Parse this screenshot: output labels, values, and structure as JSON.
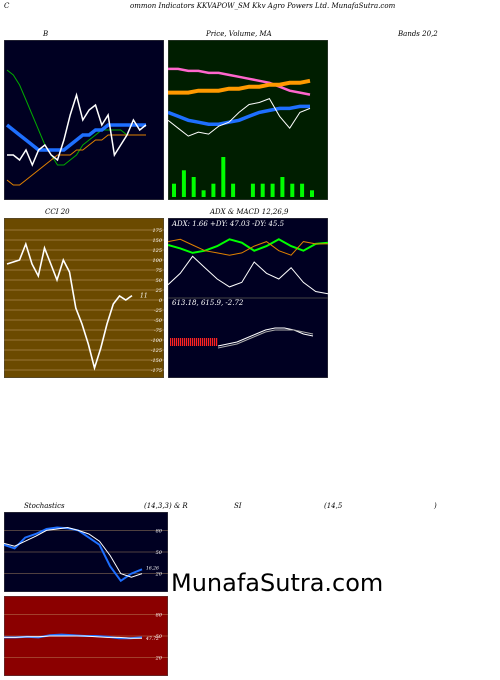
{
  "header": {
    "c_letter": "C",
    "title": "ommon  Indicators KKVAPOW_SM Kkv  Agro  Powers Ltd. MunafaSutra.com"
  },
  "labels": {
    "bollinger": "B",
    "price_volume": "Price,  Volume,  MA",
    "bands": "Bands 20,2",
    "cci": "CCI 20",
    "adx_macd": "ADX  & MACD 12,26,9",
    "adx_values": "ADX: 1.66   +DY: 47.03 -DY: 45.5",
    "macd_values": "613.18,  615.9,   -2.72",
    "stochastics": "Stochastics",
    "stoch_params": "(14,3,3) & R",
    "si": "SI",
    "rsi_params": "(14,5",
    "paren_close": ")",
    "cci_value": "11",
    "stoch_value": "16,26",
    "rsi_value": "47.72",
    "watermark": "MunafaSutra.com"
  },
  "chart_data": [
    {
      "type": "line",
      "panel": "bollinger-bands",
      "series": [
        {
          "name": "upper",
          "color": "#00aa00",
          "values": [
            205,
            204,
            202,
            199,
            196,
            193,
            190,
            188,
            186,
            186,
            187,
            188,
            190,
            191,
            192,
            193,
            193,
            193,
            193,
            192,
            192,
            192,
            192
          ]
        },
        {
          "name": "middle",
          "color": "#1e6fff",
          "values": [
            194,
            193,
            192,
            191,
            190,
            189,
            189,
            189,
            189,
            189,
            190,
            191,
            192,
            192,
            193,
            193,
            194,
            194,
            194,
            194,
            194,
            194,
            194
          ]
        },
        {
          "name": "lower",
          "color": "#e08000",
          "values": [
            183,
            182,
            182,
            183,
            184,
            185,
            186,
            187,
            188,
            188,
            188,
            189,
            189,
            190,
            191,
            191,
            192,
            192,
            192,
            192,
            192,
            192,
            192
          ]
        },
        {
          "name": "price",
          "color": "#ffffff",
          "values": [
            188,
            188,
            187,
            189,
            186,
            189,
            190,
            188,
            187,
            191,
            196,
            200,
            195,
            197,
            198,
            194,
            196,
            188,
            190,
            192,
            195,
            193,
            194
          ]
        }
      ]
    },
    {
      "type": "line",
      "panel": "price-volume-ma",
      "series": [
        {
          "name": "ma-pink",
          "color": "#ff66cc",
          "values": [
            210,
            210,
            209,
            209,
            208,
            208,
            207,
            206,
            205,
            204,
            203,
            201,
            199,
            198,
            197
          ]
        },
        {
          "name": "ma-orange",
          "color": "#ff9900",
          "values": [
            198,
            198,
            198,
            199,
            199,
            199,
            200,
            200,
            201,
            201,
            202,
            202,
            203,
            203,
            204
          ]
        },
        {
          "name": "ma-blue",
          "color": "#1e6fff",
          "values": [
            188,
            186,
            184,
            183,
            182,
            182,
            183,
            184,
            186,
            188,
            189,
            190,
            190,
            191,
            191
          ]
        },
        {
          "name": "price",
          "color": "#ffffff",
          "values": [
            184,
            180,
            176,
            178,
            177,
            181,
            183,
            188,
            192,
            193,
            195,
            186,
            180,
            188,
            190
          ]
        }
      ],
      "volume": [
        2,
        4,
        3,
        1,
        2,
        6,
        2,
        0,
        2,
        2,
        2,
        3,
        2,
        2,
        1
      ]
    },
    {
      "type": "line",
      "panel": "cci",
      "ylim": [
        -175,
        175
      ],
      "yticks": [
        175,
        150,
        125,
        100,
        75,
        50,
        25,
        0,
        -25,
        -50,
        -75,
        -100,
        -125,
        -150,
        -175
      ],
      "series": [
        {
          "name": "cci",
          "color": "#ffffff",
          "values": [
            90,
            95,
            100,
            140,
            90,
            60,
            130,
            90,
            50,
            100,
            70,
            -20,
            -60,
            -110,
            -170,
            -120,
            -60,
            -10,
            10,
            0,
            11
          ]
        }
      ]
    },
    {
      "type": "line",
      "panel": "adx",
      "series": [
        {
          "name": "+DI",
          "color": "#00ff00",
          "values": [
            45,
            42,
            38,
            40,
            44,
            50,
            47,
            40,
            44,
            50,
            44,
            40,
            46,
            47
          ]
        },
        {
          "name": "-DI",
          "color": "#e08000",
          "values": [
            48,
            50,
            45,
            40,
            38,
            36,
            38,
            44,
            48,
            40,
            36,
            48,
            46,
            46
          ]
        },
        {
          "name": "ADX",
          "color": "#ffffff",
          "values": [
            10,
            20,
            35,
            25,
            15,
            8,
            12,
            30,
            20,
            15,
            25,
            12,
            4,
            2
          ]
        }
      ]
    },
    {
      "type": "line",
      "panel": "macd",
      "series": [
        {
          "name": "macd",
          "color": "#ffffff",
          "values": [
            -4,
            -3,
            -2,
            0,
            2,
            4,
            5,
            5,
            4,
            2,
            1
          ]
        },
        {
          "name": "signal",
          "color": "#aaaaaa",
          "values": [
            -5,
            -4,
            -3,
            -1,
            1,
            3,
            4,
            4,
            4,
            3,
            2
          ]
        }
      ]
    },
    {
      "type": "line",
      "panel": "stochastics",
      "yticks": [
        80,
        50,
        20
      ],
      "series": [
        {
          "name": "%K",
          "color": "#1e6fff",
          "values": [
            60,
            55,
            70,
            75,
            82,
            84,
            83,
            80,
            70,
            60,
            30,
            10,
            20,
            26
          ]
        },
        {
          "name": "%D",
          "color": "#ffffff",
          "values": [
            62,
            58,
            65,
            72,
            80,
            82,
            84,
            80,
            75,
            65,
            45,
            20,
            15,
            20
          ]
        }
      ]
    },
    {
      "type": "line",
      "panel": "rsi",
      "yticks": [
        80,
        50,
        20
      ],
      "series": [
        {
          "name": "rsi",
          "color": "#1e6fff",
          "values": [
            48,
            48,
            49,
            48,
            51,
            52,
            51,
            50,
            50,
            49,
            47,
            47,
            48
          ]
        },
        {
          "name": "signal",
          "color": "#ffffff",
          "values": [
            48,
            48,
            49,
            49,
            50,
            50,
            50,
            50,
            49,
            48,
            48,
            47,
            47
          ]
        }
      ]
    }
  ]
}
